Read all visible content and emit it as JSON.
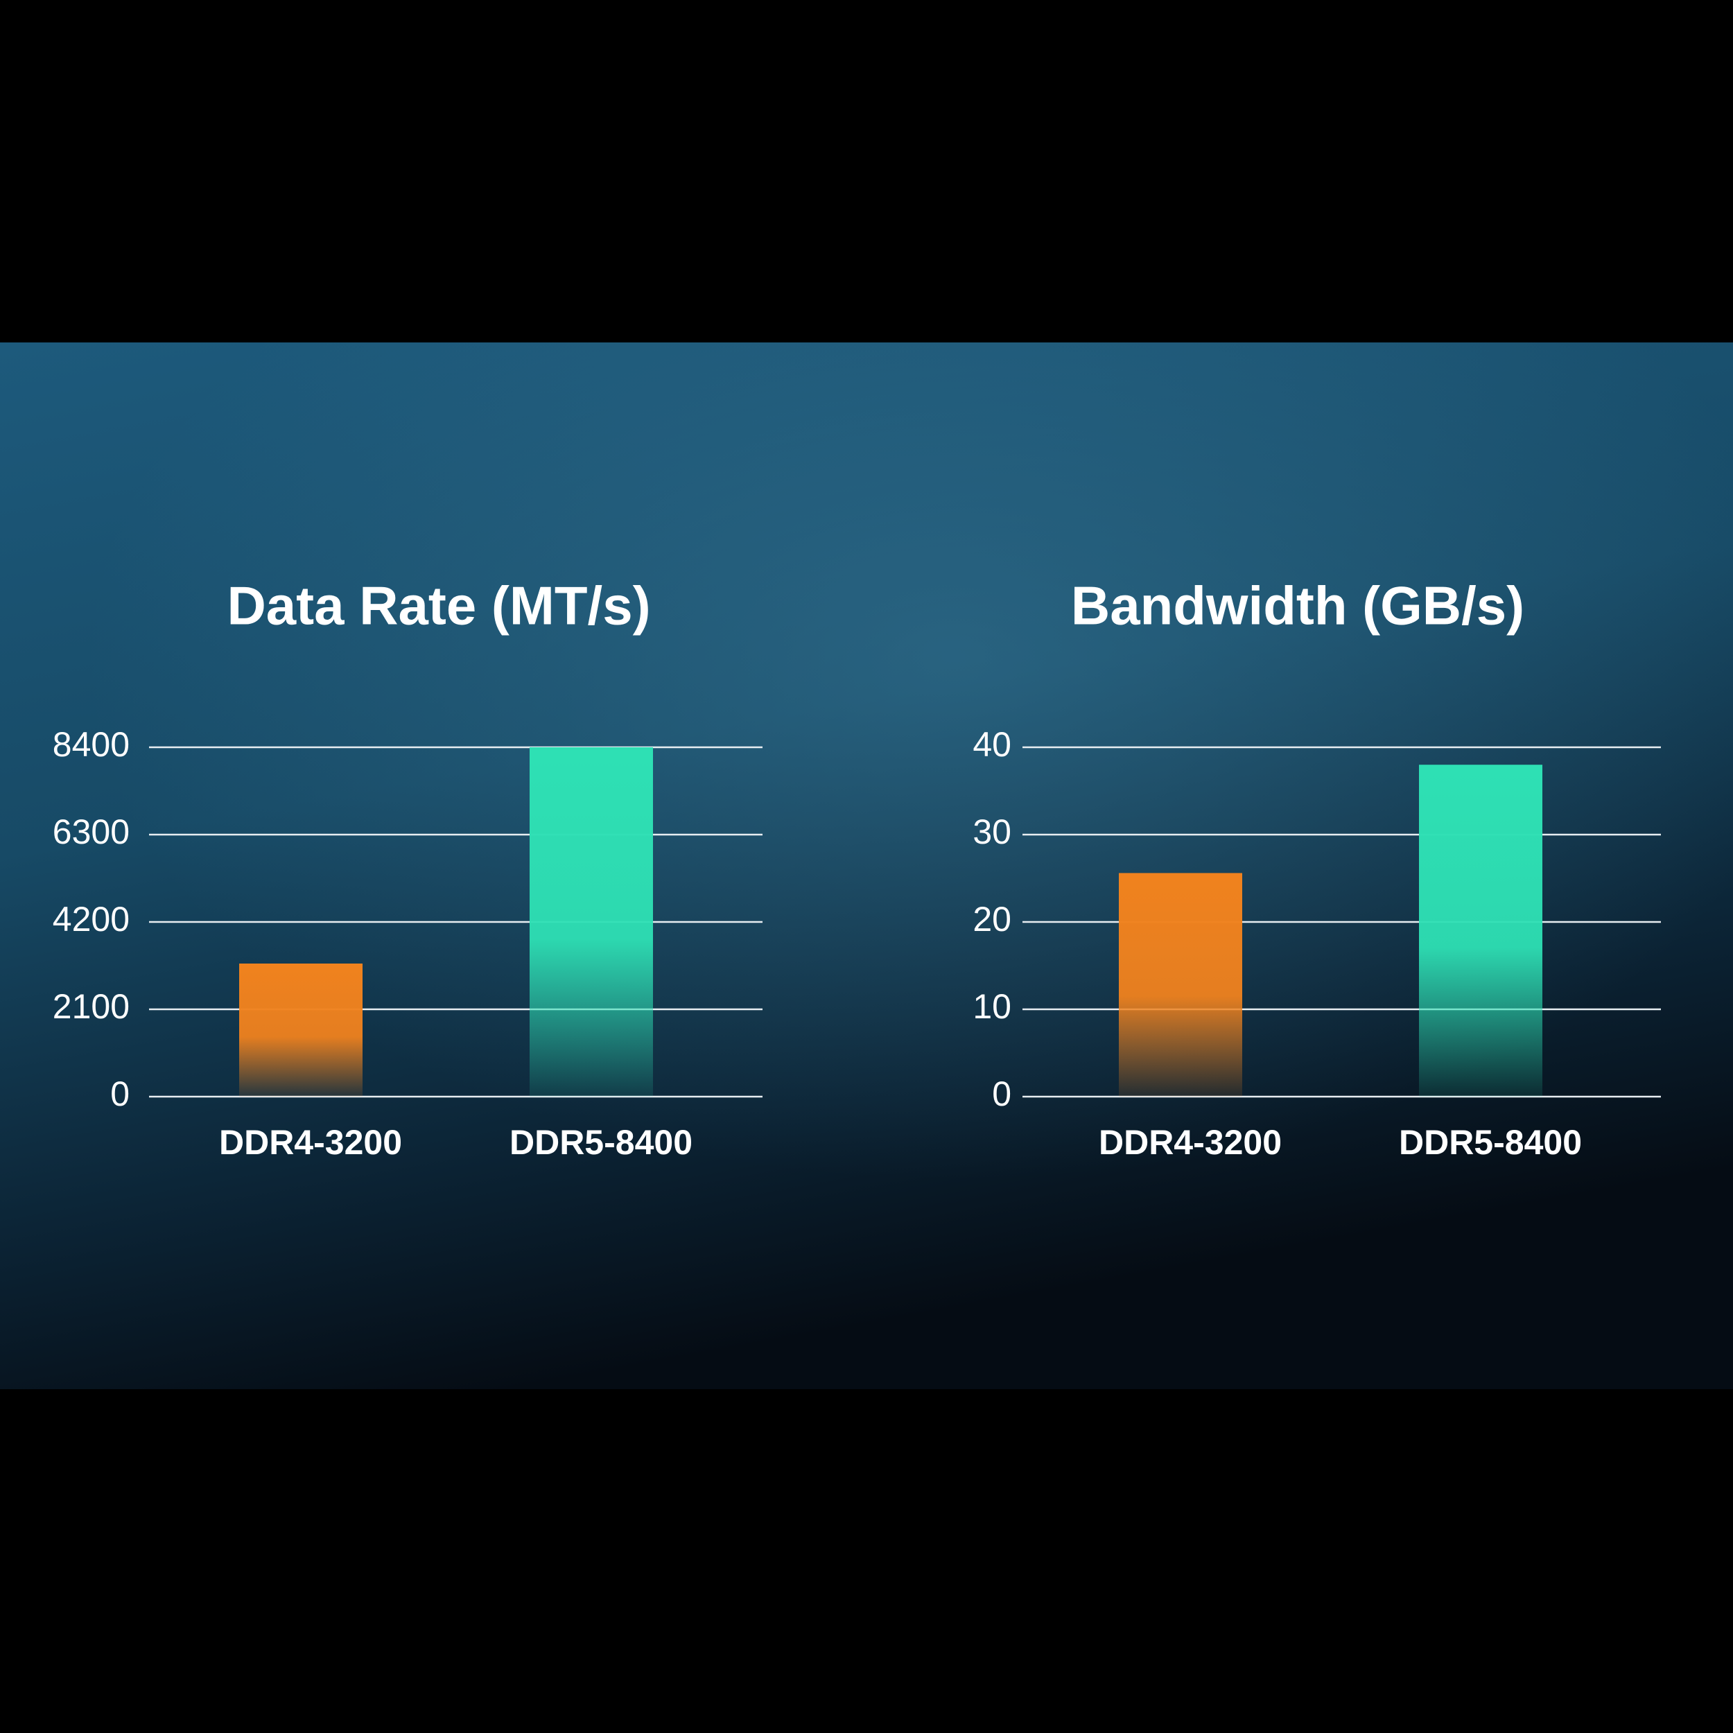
{
  "chart_data": [
    {
      "type": "bar",
      "title": "Data Rate (MT/s)",
      "categories": [
        "DDR4-3200",
        "DDR5-8400"
      ],
      "values": [
        3200,
        8400
      ],
      "colors": [
        "#f0821e",
        "#2ee0b4"
      ],
      "ylim": [
        0,
        8400
      ],
      "yticks": [
        0,
        2100,
        4200,
        6300,
        8400
      ],
      "grid": true
    },
    {
      "type": "bar",
      "title": "Bandwidth (GB/s)",
      "categories": [
        "DDR4-3200",
        "DDR5-8400"
      ],
      "values": [
        25.6,
        38
      ],
      "colors": [
        "#f0821e",
        "#2ee0b4"
      ],
      "ylim": [
        0,
        40
      ],
      "yticks": [
        0,
        10,
        20,
        30,
        40
      ],
      "grid": true
    }
  ]
}
